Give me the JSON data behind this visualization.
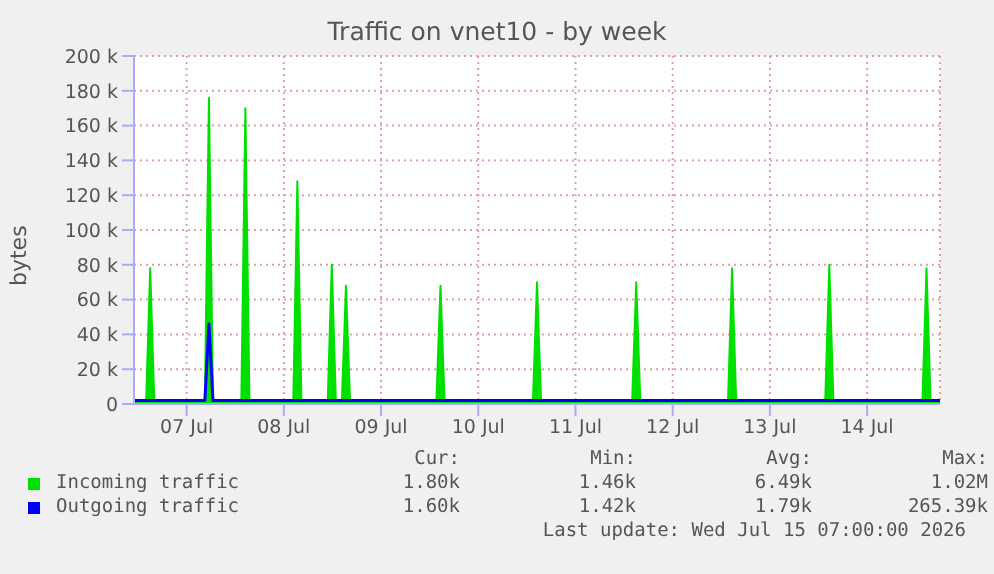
{
  "chart_data": {
    "type": "area",
    "title": "Traffic on vnet10 - by week",
    "ylabel": "bytes",
    "x": [
      "2026-07-06T23:00",
      "2026-07-07T02:00",
      "2026-07-07T03:00",
      "2026-07-07T04:00",
      "2026-07-07T16:30",
      "2026-07-07T17:30",
      "2026-07-07T18:30",
      "2026-07-08T01:30",
      "2026-07-08T02:30",
      "2026-07-08T03:30",
      "2026-07-08T14:20",
      "2026-07-08T15:20",
      "2026-07-08T16:20",
      "2026-07-08T22:50",
      "2026-07-08T23:50",
      "2026-07-09T00:50",
      "2026-07-09T02:20",
      "2026-07-09T03:20",
      "2026-07-09T04:20",
      "2026-07-10T01:40",
      "2026-07-10T02:40",
      "2026-07-10T03:40",
      "2026-07-11T01:30",
      "2026-07-11T02:30",
      "2026-07-11T03:30",
      "2026-07-12T02:00",
      "2026-07-12T03:00",
      "2026-07-12T04:00",
      "2026-07-13T01:40",
      "2026-07-13T02:40",
      "2026-07-13T03:40",
      "2026-07-14T01:40",
      "2026-07-14T02:40",
      "2026-07-14T03:40",
      "2026-07-15T01:40",
      "2026-07-15T02:40",
      "2026-07-15T03:40",
      "2026-07-15T06:00"
    ],
    "series": [
      {
        "name": "Incoming traffic",
        "color": "#00e000",
        "values": [
          2000,
          2000,
          78000,
          2000,
          2000,
          176000,
          2000,
          2000,
          170000,
          2000,
          2000,
          128000,
          2000,
          2000,
          80000,
          2000,
          2000,
          68000,
          2000,
          2000,
          68000,
          2000,
          2000,
          70000,
          2000,
          2000,
          70000,
          2000,
          2000,
          78000,
          2000,
          2000,
          80000,
          2000,
          2000,
          78000,
          2000,
          2000
        ]
      },
      {
        "name": "Outgoing traffic",
        "color": "#0000ff",
        "type": "line",
        "values": [
          2000,
          2000,
          2000,
          2000,
          2000,
          46000,
          2000,
          2000,
          2000,
          2000,
          2000,
          2000,
          2000,
          2000,
          2000,
          2000,
          2000,
          2000,
          2000,
          2000,
          2000,
          2000,
          2000,
          2000,
          2000,
          2000,
          2000,
          2000,
          2000,
          2000,
          2000,
          2000,
          2000,
          2000,
          2000,
          2000,
          2000,
          2000
        ]
      }
    ],
    "xlim": [
      "2026-07-06T23:00",
      "2026-07-15T06:00"
    ],
    "xticks": [
      {
        "value": "2026-07-07T12:00",
        "label": "07 Jul"
      },
      {
        "value": "2026-07-08T12:00",
        "label": "08 Jul"
      },
      {
        "value": "2026-07-09T12:00",
        "label": "09 Jul"
      },
      {
        "value": "2026-07-10T12:00",
        "label": "10 Jul"
      },
      {
        "value": "2026-07-11T12:00",
        "label": "11 Jul"
      },
      {
        "value": "2026-07-12T12:00",
        "label": "12 Jul"
      },
      {
        "value": "2026-07-13T12:00",
        "label": "13 Jul"
      },
      {
        "value": "2026-07-14T12:00",
        "label": "14 Jul"
      }
    ],
    "ylim": [
      0,
      200000
    ],
    "yticks": [
      0,
      {
        "value": 20000,
        "label": "20 k"
      },
      {
        "value": 40000,
        "label": "40 k"
      },
      {
        "value": 60000,
        "label": "60 k"
      },
      {
        "value": 80000,
        "label": "80 k"
      },
      {
        "value": 100000,
        "label": "100 k"
      },
      {
        "value": 120000,
        "label": "120 k"
      },
      {
        "value": 140000,
        "label": "140 k"
      },
      {
        "value": 160000,
        "label": "160 k"
      },
      {
        "value": 180000,
        "label": "180 k"
      },
      {
        "value": 200000,
        "label": "200 k"
      }
    ],
    "grid": true,
    "legend": "bottom",
    "marker": "none",
    "annotations": [
      "Cur:",
      "Min:",
      "Avg:",
      "Max:",
      "1.80k",
      "1.46k",
      "6.49k",
      "1.02M",
      "1.60k",
      "1.42k",
      "1.79k",
      "265.39k",
      "Last update: Wed Jul 15 07:00:00 2026"
    ]
  }
}
